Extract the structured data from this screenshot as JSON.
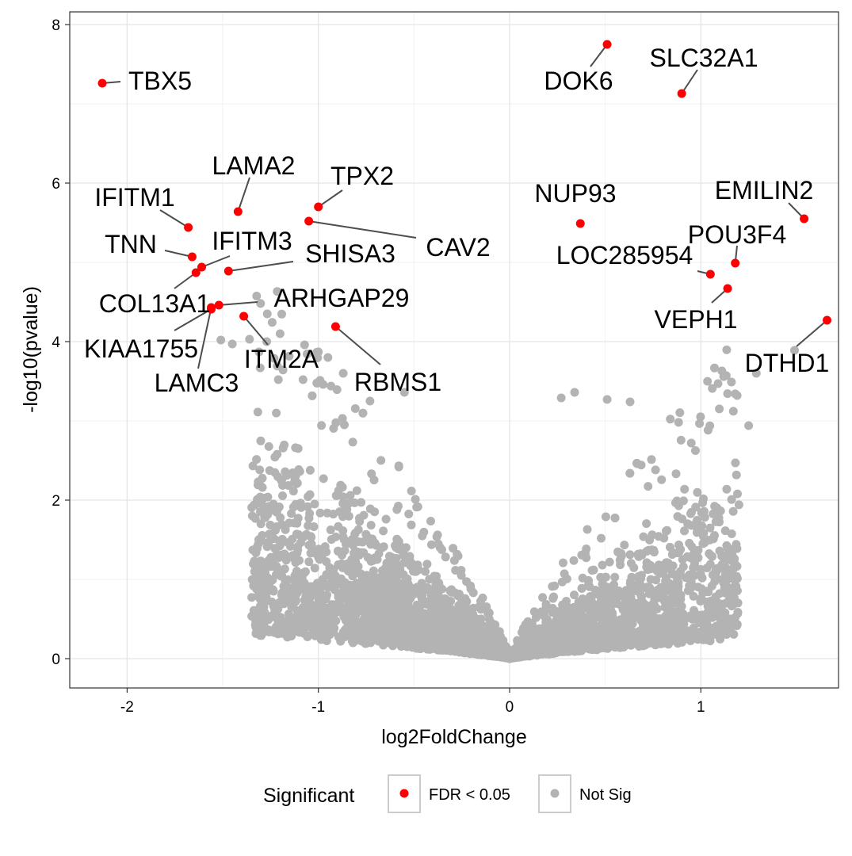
{
  "chart_data": {
    "type": "scatter",
    "xlabel": "log2FoldChange",
    "ylabel": "-log10(pvalue)",
    "xlim": [
      -2.3,
      1.72
    ],
    "ylim": [
      -0.37,
      8.16
    ],
    "xticks": [
      -2,
      -1,
      0,
      1
    ],
    "yticks": [
      0,
      2,
      4,
      6,
      8
    ],
    "grid": true,
    "legend": {
      "title": "Significant",
      "placement": "bottom",
      "entries": [
        {
          "label": "FDR < 0.05",
          "color": "#ff0000"
        },
        {
          "label": "Not Sig",
          "color": "#b3b3b3"
        }
      ]
    },
    "significant_points": [
      {
        "gene": "TBX5",
        "x": -2.13,
        "y": 7.26
      },
      {
        "gene": "DOK6",
        "x": 0.51,
        "y": 7.75
      },
      {
        "gene": "SLC32A1",
        "x": 0.9,
        "y": 7.13
      },
      {
        "gene": "LAMA2",
        "x": -1.42,
        "y": 5.64
      },
      {
        "gene": "TPX2",
        "x": -1.0,
        "y": 5.7
      },
      {
        "gene": "CAV2",
        "x": -1.05,
        "y": 5.52
      },
      {
        "gene": "IFITM1",
        "x": -1.68,
        "y": 5.44
      },
      {
        "gene": "NUP93",
        "x": 0.37,
        "y": 5.49
      },
      {
        "gene": "EMILIN2",
        "x": 1.54,
        "y": 5.55
      },
      {
        "gene": "TNN",
        "x": -1.66,
        "y": 5.07
      },
      {
        "gene": "IFITM3",
        "x": -1.61,
        "y": 4.94
      },
      {
        "gene": "COL13A1",
        "x": -1.64,
        "y": 4.87
      },
      {
        "gene": "SHISA3",
        "x": -1.47,
        "y": 4.89
      },
      {
        "gene": "POU3F4",
        "x": 1.18,
        "y": 4.99
      },
      {
        "gene": "LOC285954",
        "x": 1.05,
        "y": 4.85
      },
      {
        "gene": "VEPH1",
        "x": 1.14,
        "y": 4.67
      },
      {
        "gene": "ARHGAP29",
        "x": -1.52,
        "y": 4.46
      },
      {
        "gene": "KIAA1755",
        "x": -1.56,
        "y": 4.41
      },
      {
        "gene": "LAMC3",
        "x": -1.56,
        "y": 4.43
      },
      {
        "gene": "ITM2A",
        "x": -1.39,
        "y": 4.32
      },
      {
        "gene": "RBMS1",
        "x": -0.91,
        "y": 4.19
      },
      {
        "gene": "DTHD1",
        "x": 1.66,
        "y": 4.27
      }
    ],
    "not_sig_highlight_points": [
      {
        "x": -1.51,
        "y": 4.02
      },
      {
        "x": -1.45,
        "y": 3.97
      },
      {
        "x": -1.36,
        "y": 4.03
      },
      {
        "x": -1.27,
        "y": 4.0
      },
      {
        "x": -1.2,
        "y": 4.1
      },
      {
        "x": -1.31,
        "y": 3.87
      },
      {
        "x": -1.0,
        "y": 3.87
      },
      {
        "x": -0.95,
        "y": 3.8
      },
      {
        "x": -0.87,
        "y": 3.6
      },
      {
        "x": -1.08,
        "y": 3.52
      },
      {
        "x": -0.55,
        "y": 3.36
      },
      {
        "x": -0.73,
        "y": 3.25
      },
      {
        "x": 0.27,
        "y": 3.29
      },
      {
        "x": 0.34,
        "y": 3.36
      },
      {
        "x": 0.51,
        "y": 3.27
      },
      {
        "x": 0.63,
        "y": 3.24
      },
      {
        "x": 1.11,
        "y": 3.63
      },
      {
        "x": 1.16,
        "y": 3.49
      },
      {
        "x": 1.19,
        "y": 3.32
      },
      {
        "x": 1.29,
        "y": 3.6
      },
      {
        "x": 1.49,
        "y": 3.89
      },
      {
        "x": 1.25,
        "y": 2.94
      },
      {
        "x": 1.09,
        "y": 3.47
      },
      {
        "x": 0.95,
        "y": 2.72
      }
    ]
  }
}
